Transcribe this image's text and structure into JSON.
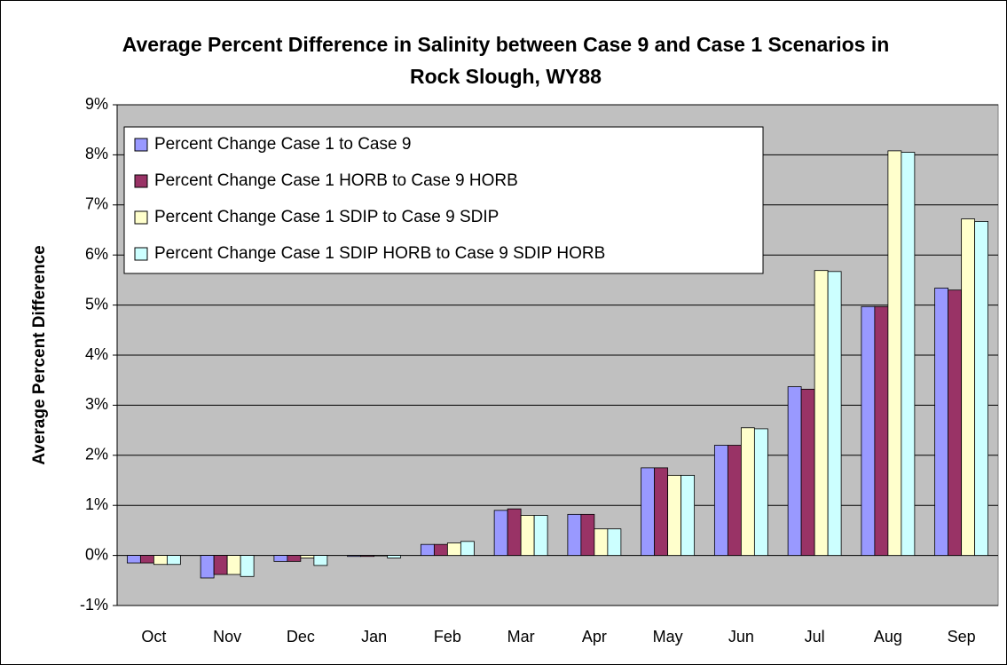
{
  "chart_data": {
    "type": "bar",
    "title": "Average Percent Difference in Salinity between Case 9 and Case 1 Scenarios in Rock Slough, WY88",
    "y_label": "Average Percent Difference",
    "categories": [
      "Oct",
      "Nov",
      "Dec",
      "Jan",
      "Feb",
      "Mar",
      "Apr",
      "May",
      "Jun",
      "Jul",
      "Aug",
      "Sep"
    ],
    "series": [
      {
        "name": "Percent Change Case 1 to Case 9",
        "color": "#9999ff",
        "values": [
          -0.15,
          -0.45,
          -0.12,
          -0.02,
          0.22,
          0.9,
          0.82,
          1.75,
          2.2,
          3.37,
          4.97,
          5.34
        ]
      },
      {
        "name": "Percent Change Case 1 HORB to Case 9 HORB",
        "color": "#993366",
        "values": [
          -0.15,
          -0.38,
          -0.12,
          -0.02,
          0.22,
          0.93,
          0.82,
          1.75,
          2.2,
          3.32,
          4.97,
          5.3
        ]
      },
      {
        "name": "Percent Change Case 1 SDIP to Case 9 SDIP",
        "color": "#ffffcc",
        "values": [
          -0.18,
          -0.38,
          -0.05,
          0,
          0.25,
          0.8,
          0.53,
          1.6,
          2.55,
          5.69,
          8.08,
          6.72
        ]
      },
      {
        "name": "Percent Change Case 1 SDIP HORB to Case 9 SDIP HORB",
        "color": "#ccffff",
        "values": [
          -0.18,
          -0.42,
          -0.2,
          -0.05,
          0.28,
          0.8,
          0.53,
          1.6,
          2.53,
          5.67,
          8.05,
          6.67
        ]
      }
    ],
    "ylim": [
      -1,
      9
    ],
    "yticks": [
      {
        "value": -1,
        "label": "-1%"
      },
      {
        "value": 0,
        "label": "0%"
      },
      {
        "value": 1,
        "label": "1%"
      },
      {
        "value": 2,
        "label": "2%"
      },
      {
        "value": 3,
        "label": "3%"
      },
      {
        "value": 4,
        "label": "4%"
      },
      {
        "value": 5,
        "label": "5%"
      },
      {
        "value": 6,
        "label": "6%"
      },
      {
        "value": 7,
        "label": "7%"
      },
      {
        "value": 8,
        "label": "8%"
      },
      {
        "value": 9,
        "label": "9%"
      }
    ],
    "grid": true,
    "legend_position": "upper-left",
    "plot_background": "#c0c0c0"
  }
}
